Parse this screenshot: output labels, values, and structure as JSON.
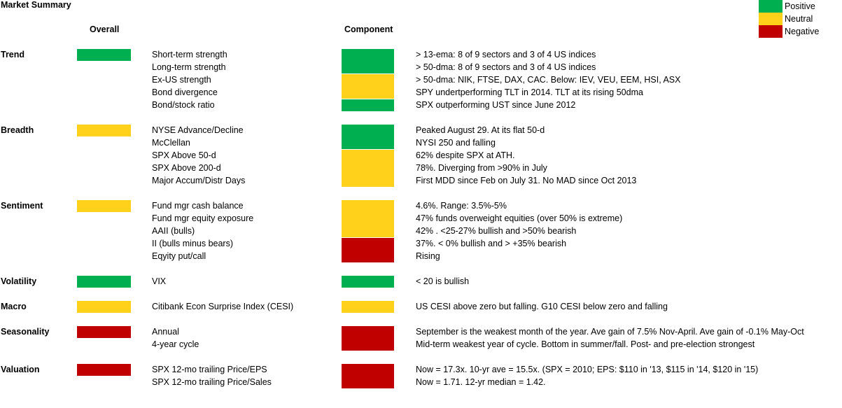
{
  "title": "Market Summary",
  "headers": {
    "overall": "Overall",
    "component": "Component"
  },
  "colors": {
    "positive": "#00b050",
    "neutral": "#ffd11a",
    "negative": "#c00000"
  },
  "legend": [
    {
      "label": "Positive",
      "status": "positive"
    },
    {
      "label": "Neutral",
      "status": "neutral"
    },
    {
      "label": "Negative",
      "status": "negative"
    }
  ],
  "sections": [
    {
      "category": "Trend",
      "overall": "positive",
      "indicators": [
        {
          "name": "Short-term strength",
          "note": "> 13-ema: 8 of 9 sectors and 3 of 4 US indices"
        },
        {
          "name": "Long-term strength",
          "note": "> 50-dma: 8 of 9 sectors and 3 of 4 US indices"
        },
        {
          "name": "Ex-US strength",
          "note": "> 50-dma: NIK, FTSE, DAX, CAC. Below: IEV, VEU, EEM, HSI, ASX"
        },
        {
          "name": "Bond divergence",
          "note": "SPY undertperforming TLT in 2014. TLT at its rising 50dma"
        },
        {
          "name": "Bond/stock ratio",
          "note": "SPX outperforming UST since June 2012"
        }
      ]
    },
    {
      "category": "Breadth",
      "overall": "neutral",
      "indicators": [
        {
          "name": "NYSE Advance/Decline",
          "note": "Peaked August 29. At its flat 50-d"
        },
        {
          "name": "McClellan",
          "note": "NYSI 250 and falling"
        },
        {
          "name": "SPX Above 50-d",
          "note": "62% despite SPX at ATH."
        },
        {
          "name": "SPX Above 200-d",
          "note": "78%. Diverging from >90% in July"
        },
        {
          "name": "Major Accum/Distr Days",
          "note": "First MDD since Feb on July 31. No MAD since Oct 2013"
        }
      ]
    },
    {
      "category": "Sentiment",
      "overall": "neutral",
      "indicators": [
        {
          "name": "Fund mgr cash balance",
          "note": "4.6%. Range: 3.5%-5%"
        },
        {
          "name": "Fund mgr equity exposure",
          "note": "47% funds overweight equities (over 50% is extreme)"
        },
        {
          "name": "AAII (bulls)",
          "note": "42% . <25-27% bullish and >50% bearish"
        },
        {
          "name": "II (bulls minus bears)",
          "note": "37%. < 0% bullish and > +35% bearish"
        },
        {
          "name": "Eqyity put/call",
          "note": "Rising"
        }
      ]
    },
    {
      "category": "Volatility",
      "overall": "positive",
      "indicators": [
        {
          "name": "VIX",
          "note": "< 20 is bullish"
        }
      ]
    },
    {
      "category": "Macro",
      "overall": "neutral",
      "indicators": [
        {
          "name": "Citibank Econ Surprise Index (CESI)",
          "note": "US CESI above zero but falling.  G10 CESI below zero and falling"
        }
      ]
    },
    {
      "category": "Seasonality",
      "overall": "negative",
      "indicators": [
        {
          "name": "Annual",
          "note": "September is the weakest month of the year. Ave gain of 7.5% Nov-April. Ave gain of -0.1% May-Oct"
        },
        {
          "name": "4-year cycle",
          "note": "Mid-term weakest year of cycle. Bottom in summer/fall. Post- and pre-election strongest"
        }
      ]
    },
    {
      "category": "Valuation",
      "overall": "negative",
      "indicators": [
        {
          "name": "SPX 12-mo trailing Price/EPS",
          "note": "Now = 17.3x. 10-yr ave = 15.5x. (SPX = 2010; EPS: $110 in '13, $115 in '14, $120 in '15)"
        },
        {
          "name": "SPX 12-mo trailing Price/Sales",
          "note": "Now = 1.71. 12-yr median = 1.42."
        }
      ]
    }
  ],
  "component_blocks": [
    {
      "section": 0,
      "from_row": 0,
      "rows": 2,
      "status": "positive"
    },
    {
      "section": 0,
      "from_row": 2,
      "rows": 2,
      "status": "neutral"
    },
    {
      "section": 0,
      "from_row": 4,
      "rows": 1,
      "status": "positive"
    },
    {
      "section": 1,
      "from_row": 0,
      "rows": 2,
      "status": "positive"
    },
    {
      "section": 1,
      "from_row": 2,
      "rows": 3,
      "status": "neutral"
    },
    {
      "section": 2,
      "from_row": 0,
      "rows": 3,
      "status": "neutral"
    },
    {
      "section": 2,
      "from_row": 3,
      "rows": 2,
      "status": "negative"
    },
    {
      "section": 3,
      "from_row": 0,
      "rows": 1,
      "status": "positive"
    },
    {
      "section": 4,
      "from_row": 0,
      "rows": 1,
      "status": "neutral"
    },
    {
      "section": 5,
      "from_row": 0,
      "rows": 2,
      "status": "negative"
    },
    {
      "section": 6,
      "from_row": 0,
      "rows": 2,
      "status": "negative"
    }
  ]
}
